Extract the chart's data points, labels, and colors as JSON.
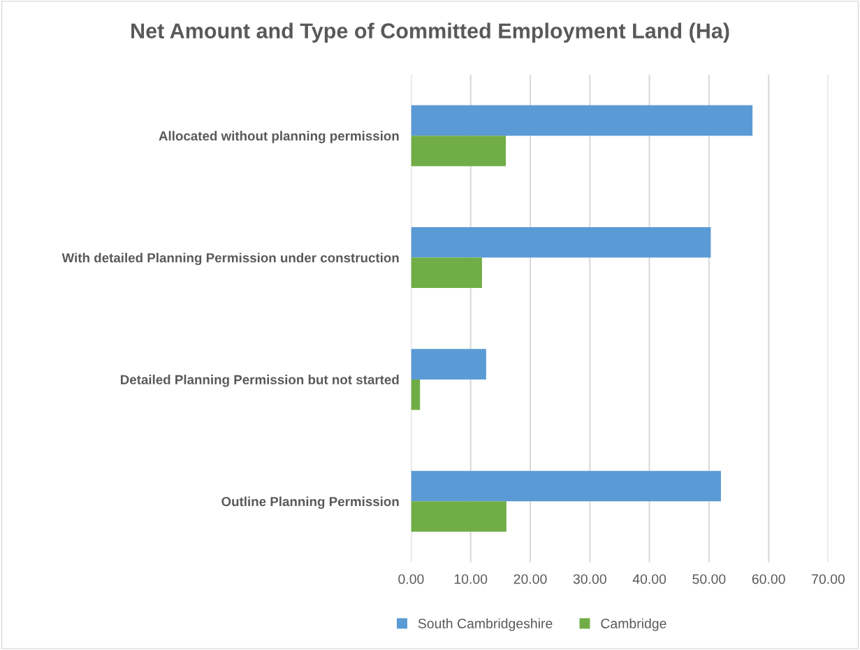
{
  "chart_data": {
    "type": "bar",
    "orientation": "horizontal",
    "title": "Net Amount and Type of Committed Employment Land (Ha)",
    "categories": [
      "Allocated without planning permission",
      "With detailed Planning Permission under construction",
      "Detailed Planning Permission but not started",
      "Outline Planning Permission"
    ],
    "series": [
      {
        "name": "South Cambridgeshire",
        "color": "#5b9bd5",
        "values": [
          57.3,
          50.3,
          12.6,
          52.0
        ]
      },
      {
        "name": "Cambridge",
        "color": "#70ad47",
        "values": [
          15.9,
          11.9,
          1.5,
          16.0
        ]
      }
    ],
    "xlim": [
      0,
      70
    ],
    "xticks": [
      {
        "value": 0,
        "label": "0.00"
      },
      {
        "value": 10,
        "label": "10.00"
      },
      {
        "value": 20,
        "label": "20.00"
      },
      {
        "value": 30,
        "label": "30.00"
      },
      {
        "value": 40,
        "label": "40.00"
      },
      {
        "value": 50,
        "label": "50.00"
      },
      {
        "value": 60,
        "label": "60.00"
      },
      {
        "value": 70,
        "label": "70.00"
      }
    ],
    "grid": "x",
    "legend": "bottom"
  }
}
